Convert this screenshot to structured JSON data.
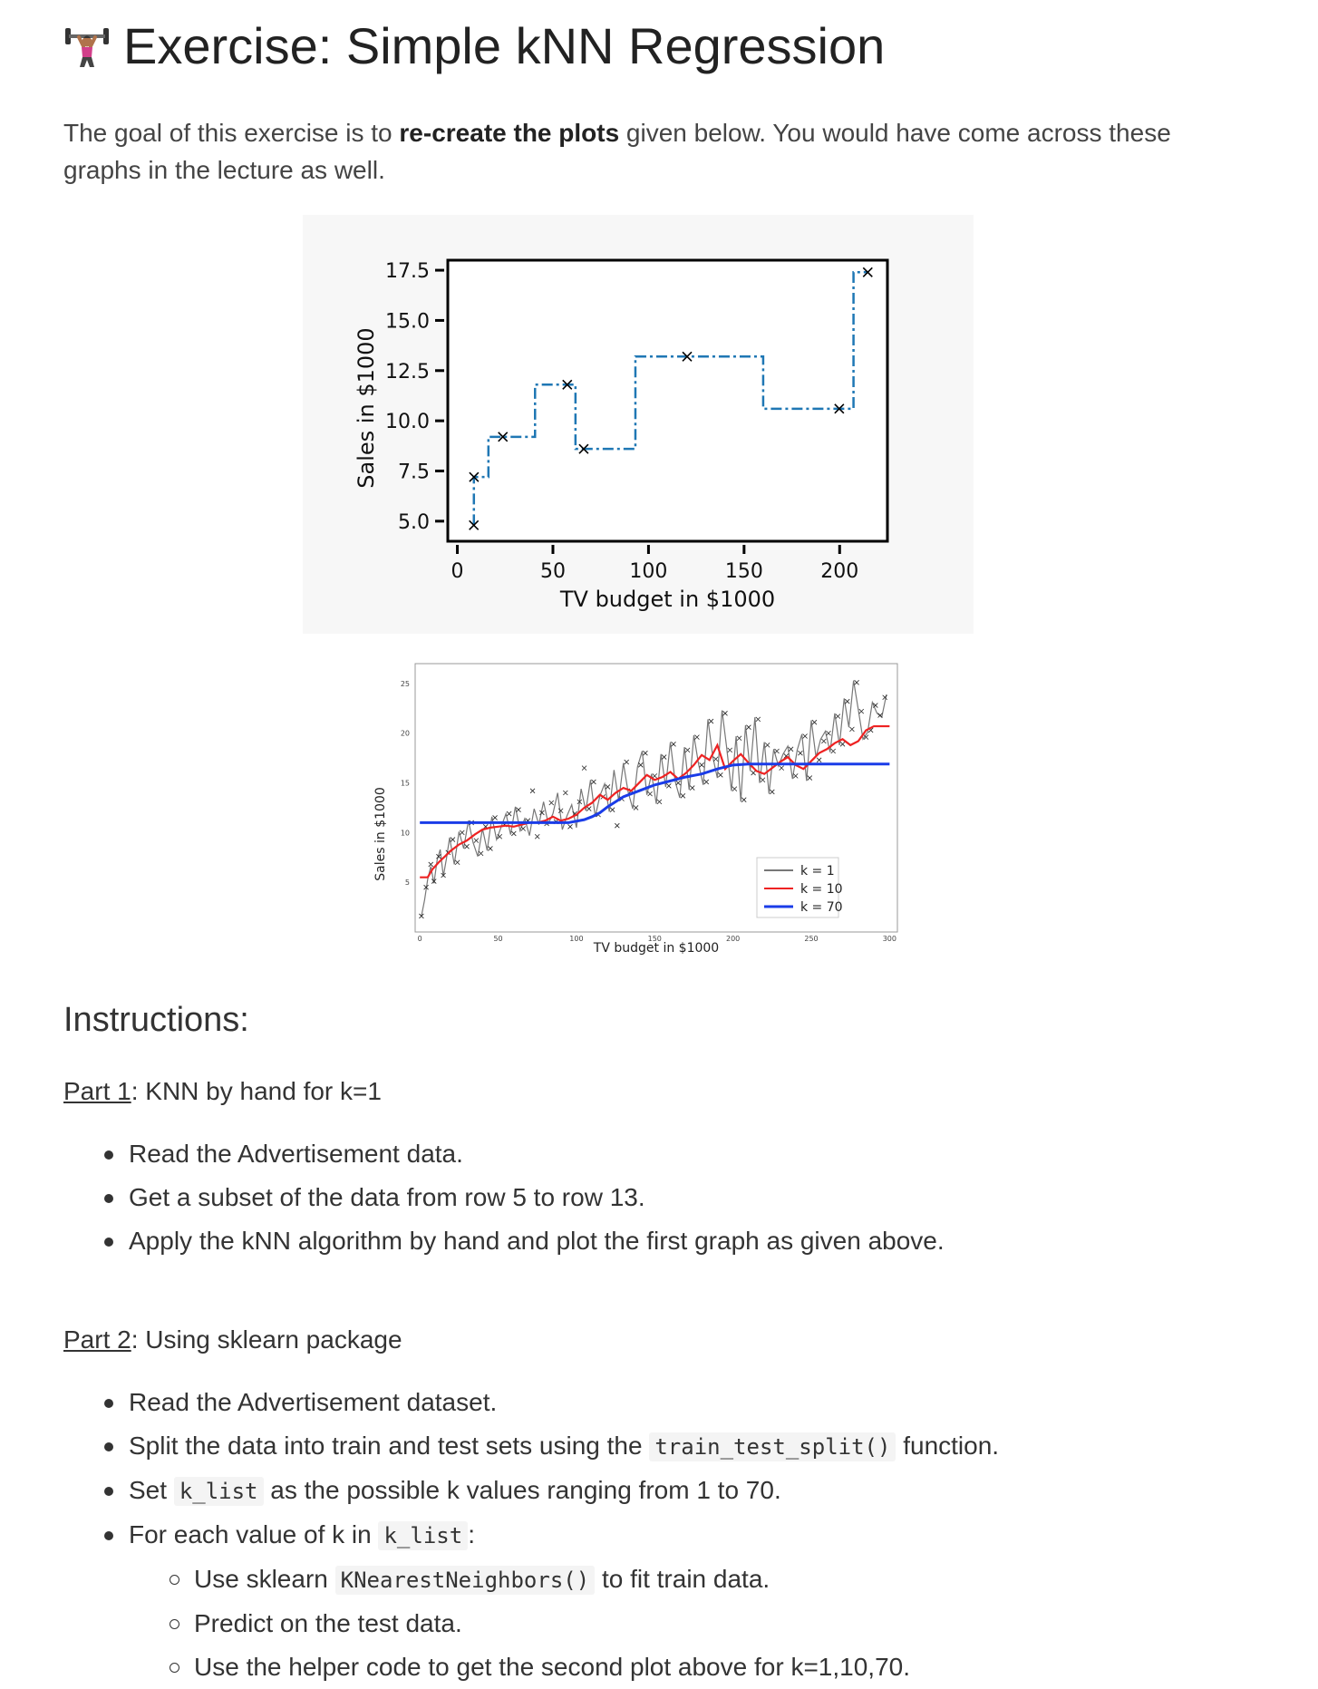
{
  "title": "Exercise: Simple kNN Regression",
  "intro": {
    "pre": "The goal of this exercise is to ",
    "bold": "re-create the plots",
    "post": " given below. You would have come across these graphs in the lecture as well."
  },
  "chart_data": [
    {
      "type": "line",
      "xlabel": "TV budget in $1000",
      "ylabel": "Sales in $1000",
      "x_ticks": [
        "0",
        "50",
        "100",
        "150",
        "200"
      ],
      "y_ticks": [
        "5.0",
        "7.5",
        "10.0",
        "12.5",
        "15.0",
        "17.5"
      ],
      "xlim": [
        -5,
        225
      ],
      "ylim": [
        4,
        18
      ],
      "points": {
        "x": [
          8.6,
          8.7,
          23.8,
          57.5,
          66.1,
          120.2,
          199.8,
          214.7
        ],
        "y": [
          4.8,
          7.2,
          9.2,
          11.8,
          8.6,
          13.2,
          10.6,
          17.4
        ]
      },
      "step_line": {
        "x": [
          8.6,
          8.65,
          8.65,
          16.25,
          16.25,
          40.65,
          40.65,
          61.8,
          61.8,
          93.15,
          93.15,
          160.0,
          160.0,
          207.25,
          207.25,
          214.7
        ],
        "y": [
          4.8,
          4.8,
          7.2,
          7.2,
          9.2,
          9.2,
          11.8,
          11.8,
          8.6,
          8.6,
          13.2,
          13.2,
          10.6,
          10.6,
          17.4,
          17.4
        ]
      },
      "colors": {
        "line": "#1f77b4",
        "marker": "#000000"
      }
    },
    {
      "type": "line",
      "xlabel": "TV budget in $1000",
      "ylabel": "Sales in $1000",
      "x_ticks": [
        "0",
        "50",
        "100",
        "150",
        "200",
        "250",
        "300"
      ],
      "y_ticks": [
        "5",
        "10",
        "15",
        "20",
        "25"
      ],
      "xlim": [
        -3,
        305
      ],
      "ylim": [
        0,
        27
      ],
      "legend_position": "lower right",
      "series": [
        {
          "name": "k = 1",
          "color": "#777777"
        },
        {
          "name": "k = 10",
          "color": "#ee2222"
        },
        {
          "name": "k = 70",
          "color": "#1a3ce8"
        }
      ],
      "k70": {
        "x": [
          0,
          95,
          105,
          110,
          115,
          120,
          125,
          130,
          140,
          150,
          160,
          170,
          180,
          190,
          200,
          210,
          220,
          230,
          240,
          250,
          300
        ],
        "y": [
          11.0,
          11.0,
          11.3,
          11.6,
          12.0,
          12.6,
          13.1,
          13.6,
          14.2,
          14.8,
          15.2,
          15.6,
          15.9,
          16.4,
          16.8,
          16.9,
          16.9,
          16.9,
          16.9,
          16.9,
          16.9
        ]
      },
      "k10": {
        "x": [
          0,
          5,
          8,
          12,
          16,
          20,
          25,
          30,
          35,
          40,
          45,
          50,
          55,
          60,
          65,
          70,
          75,
          80,
          85,
          90,
          95,
          100,
          105,
          110,
          115,
          120,
          125,
          130,
          135,
          140,
          145,
          150,
          155,
          160,
          165,
          170,
          175,
          180,
          185,
          190,
          195,
          200,
          205,
          210,
          215,
          220,
          225,
          230,
          235,
          240,
          245,
          250,
          255,
          260,
          265,
          270,
          275,
          280,
          285,
          290,
          300
        ],
        "y": [
          5.5,
          5.5,
          6.3,
          7.0,
          7.6,
          8.2,
          8.8,
          9.2,
          9.8,
          10.3,
          10.5,
          10.6,
          10.7,
          10.6,
          10.8,
          11.0,
          11.0,
          11.2,
          11.6,
          11.2,
          11.4,
          11.8,
          12.5,
          13.0,
          13.8,
          13.3,
          14.0,
          14.5,
          14.2,
          15.0,
          15.8,
          15.3,
          15.6,
          16.1,
          15.4,
          16.0,
          16.8,
          17.8,
          17.3,
          18.8,
          16.4,
          17.2,
          17.9,
          17.0,
          16.2,
          15.9,
          16.5,
          17.1,
          17.6,
          16.8,
          16.4,
          17.2,
          18.0,
          18.4,
          19.0,
          19.4,
          18.8,
          19.2,
          20.3,
          20.7,
          20.7
        ]
      },
      "k1": {
        "x": [
          1,
          3,
          5,
          7,
          9,
          11,
          13,
          15,
          17,
          19,
          22,
          25,
          28,
          31,
          34,
          37,
          40,
          43,
          46,
          49,
          52,
          55,
          58,
          61,
          64,
          67,
          70,
          73,
          76,
          79,
          82,
          85,
          88,
          91,
          94,
          97,
          100,
          103,
          106,
          109,
          112,
          115,
          118,
          121,
          124,
          127,
          130,
          133,
          136,
          139,
          142,
          145,
          148,
          151,
          154,
          157,
          160,
          163,
          166,
          169,
          172,
          175,
          178,
          181,
          184,
          187,
          190,
          193,
          196,
          199,
          202,
          205,
          208,
          211,
          214,
          217,
          220,
          223,
          226,
          229,
          232,
          235,
          238,
          241,
          244,
          247,
          250,
          253,
          256,
          259,
          262,
          265,
          268,
          271,
          274,
          277,
          280,
          283,
          286,
          289,
          292,
          295,
          298
        ],
        "y": [
          1.6,
          3.2,
          5.3,
          6.6,
          4.9,
          7.2,
          8.3,
          5.6,
          7.4,
          9.5,
          6.8,
          10.1,
          8.4,
          11.2,
          9.0,
          7.6,
          10.4,
          8.2,
          11.6,
          9.3,
          10.6,
          11.9,
          9.8,
          12.6,
          10.2,
          11.4,
          9.7,
          12.4,
          10.8,
          13.1,
          10.9,
          11.9,
          14.0,
          10.3,
          11.7,
          12.8,
          10.5,
          14.4,
          12.2,
          15.3,
          11.6,
          13.7,
          14.9,
          12.1,
          16.3,
          13.2,
          17.0,
          14.1,
          12.4,
          16.6,
          18.2,
          13.8,
          15.9,
          12.9,
          17.9,
          14.6,
          19.1,
          15.2,
          13.5,
          18.6,
          14.3,
          19.8,
          16.9,
          14.8,
          21.4,
          17.7,
          15.5,
          22.3,
          18.5,
          14.2,
          19.7,
          13.1,
          20.8,
          16.2,
          21.6,
          15.0,
          19.1,
          13.9,
          18.4,
          16.7,
          17.9,
          18.7,
          15.4,
          18.3,
          19.9,
          15.2,
          21.3,
          17.6,
          19.4,
          20.2,
          18.1,
          22.0,
          18.8,
          23.5,
          20.6,
          25.3,
          22.4,
          19.4,
          20.1,
          23.1,
          22.0,
          21.6,
          23.9
        ]
      },
      "scatter": {
        "x": [
          1,
          4,
          7,
          9,
          12,
          15,
          18,
          21,
          24,
          27,
          30,
          33,
          36,
          39,
          42,
          45,
          48,
          51,
          54,
          57,
          60,
          63,
          66,
          69,
          72,
          75,
          78,
          81,
          84,
          87,
          90,
          93,
          96,
          99,
          102,
          105,
          108,
          111,
          114,
          117,
          120,
          123,
          126,
          129,
          132,
          135,
          138,
          141,
          144,
          147,
          150,
          153,
          156,
          159,
          162,
          165,
          168,
          171,
          174,
          177,
          180,
          183,
          186,
          189,
          192,
          195,
          198,
          201,
          204,
          207,
          210,
          213,
          216,
          219,
          222,
          225,
          228,
          231,
          234,
          237,
          240,
          243,
          246,
          249,
          252,
          255,
          258,
          261,
          264,
          267,
          270,
          273,
          276,
          279,
          282,
          285,
          288,
          291,
          294,
          297
        ],
        "y": [
          1.6,
          4.5,
          6.8,
          5.1,
          7.6,
          5.7,
          8.0,
          9.3,
          7.0,
          10.0,
          8.6,
          11.0,
          9.2,
          7.9,
          10.6,
          8.4,
          11.5,
          9.6,
          10.8,
          11.9,
          9.9,
          12.3,
          10.4,
          11.2,
          14.2,
          9.6,
          12.0,
          10.9,
          13.0,
          11.1,
          12.2,
          14.0,
          10.6,
          11.9,
          13.1,
          16.5,
          12.4,
          15.1,
          11.8,
          13.6,
          14.6,
          12.3,
          10.7,
          13.4,
          17.1,
          14.2,
          12.5,
          16.8,
          18.0,
          13.9,
          15.7,
          13.1,
          17.6,
          14.7,
          18.9,
          15.0,
          13.7,
          18.3,
          14.5,
          19.6,
          16.8,
          15.1,
          21.2,
          17.4,
          15.8,
          22.0,
          18.3,
          14.4,
          19.5,
          13.3,
          20.6,
          16.0,
          21.4,
          15.3,
          18.8,
          14.1,
          18.2,
          16.5,
          17.7,
          18.4,
          15.7,
          18.0,
          19.7,
          15.5,
          21.1,
          17.3,
          19.2,
          20.0,
          18.2,
          21.7,
          18.9,
          23.2,
          20.4,
          25.1,
          22.2,
          19.6,
          20.3,
          22.8,
          21.8,
          23.6
        ]
      }
    }
  ],
  "instructions": {
    "heading": "Instructions:",
    "part1": {
      "label": "Part 1",
      "title": ": KNN by hand for k=1",
      "items": [
        "Read the Advertisement data.",
        "Get a subset of the data from row 5 to row 13.",
        "Apply the kNN algorithm by hand and plot the first graph as given above."
      ]
    },
    "part2": {
      "label": "Part 2",
      "title": ": Using sklearn package",
      "items": {
        "read": "Read the Advertisement dataset.",
        "split_pre": "Split the data into train and test sets using the ",
        "split_code": "train_test_split()",
        "split_post": " function.",
        "set_pre": "Set ",
        "set_code": "k_list",
        "set_post": " as the possible k values ranging from 1 to 70.",
        "for_pre": "For each value of k in ",
        "for_code": "k_list",
        "for_post": ":",
        "sub": {
          "use_pre": "Use sklearn ",
          "use_code": "KNearestNeighbors()",
          "use_post": " to fit train data.",
          "predict": "Predict on the test data.",
          "helper": "Use the helper code to get the second plot above for k=1,10,70."
        }
      }
    }
  }
}
